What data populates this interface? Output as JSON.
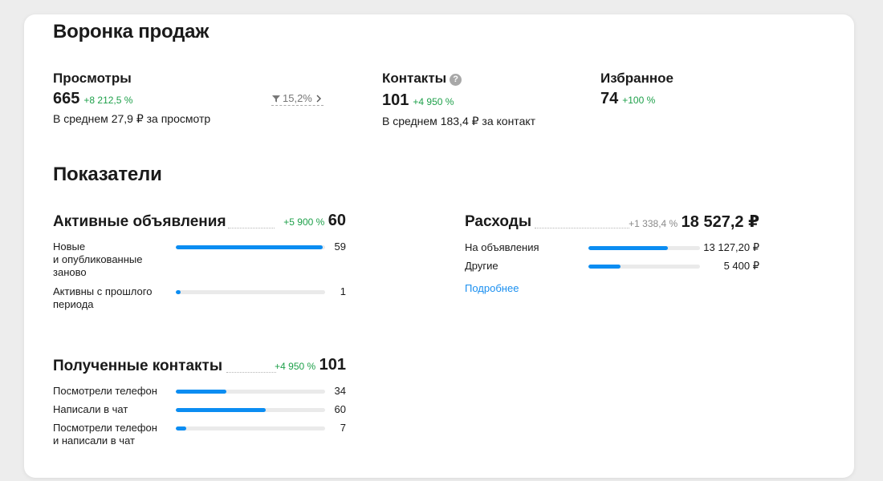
{
  "funnel": {
    "title": "Воронка продаж",
    "views": {
      "label": "Просмотры",
      "value": "665",
      "growth": "+8 212,5 %",
      "sub": "В среднем 27,9 ₽ за просмотр",
      "conversion": "15,2%"
    },
    "contacts": {
      "label": "Контакты",
      "value": "101",
      "growth": "+4 950 %",
      "sub": "В среднем 183,4 ₽ за контакт",
      "help": "?"
    },
    "favorites": {
      "label": "Избранное",
      "value": "74",
      "growth": "+100 %"
    }
  },
  "metrics": {
    "title": "Показатели",
    "active_ads": {
      "title": "Активные объявления",
      "growth": "+5 900 %",
      "total": "60",
      "rows": [
        {
          "label_lines": [
            "Новые",
            "и опубликованные",
            "заново"
          ],
          "value": "59",
          "fill": 0.983
        },
        {
          "label_lines": [
            "Активны с прошлого",
            "периода"
          ],
          "value": "1",
          "fill": 0.03
        }
      ]
    },
    "contacts": {
      "title": "Полученные контакты",
      "growth": "+4 950 %",
      "total": "101",
      "rows": [
        {
          "label_lines": [
            "Посмотрели телефон"
          ],
          "value": "34",
          "fill": 0.34
        },
        {
          "label_lines": [
            "Написали в чат"
          ],
          "value": "60",
          "fill": 0.6
        },
        {
          "label_lines": [
            "Посмотрели телефон",
            "и написали в чат"
          ],
          "value": "7",
          "fill": 0.07
        }
      ]
    },
    "expenses": {
      "title": "Расходы",
      "growth": "+1 338,4 %",
      "total": "18 527,2 ₽",
      "rows": [
        {
          "label": "На объявления",
          "value": "13 127,20 ₽",
          "fill": 0.71
        },
        {
          "label": "Другие",
          "value": "5 400 ₽",
          "fill": 0.29
        }
      ],
      "more_link": "Подробнее"
    }
  },
  "colors": {
    "accent": "#0b8df2",
    "growth": "#1ea04a",
    "track": "#eaeaea"
  }
}
